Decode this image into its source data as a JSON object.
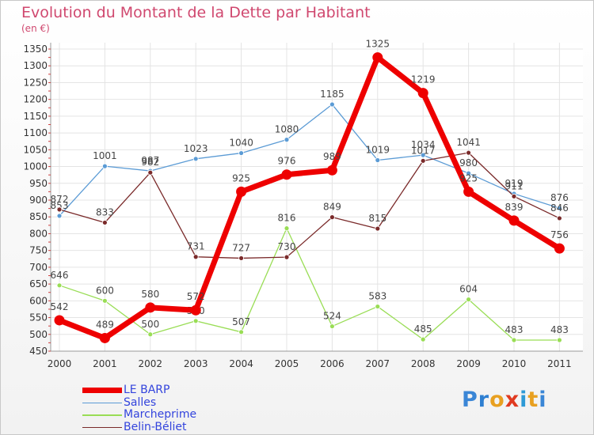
{
  "chart_data": {
    "type": "line",
    "title": "Evolution du Montant de la Dette par Habitant",
    "subtitle": "(en €)",
    "x": [
      "2000",
      "2001",
      "2002",
      "2003",
      "2004",
      "2005",
      "2006",
      "2007",
      "2008",
      "2009",
      "2010",
      "2011"
    ],
    "y_ticks": [
      450,
      500,
      550,
      600,
      650,
      700,
      750,
      800,
      850,
      900,
      950,
      1000,
      1050,
      1100,
      1150,
      1200,
      1250,
      1300,
      1350
    ],
    "ylim": [
      450,
      1350
    ],
    "grid": true,
    "legend_position": "bottom-left",
    "series": [
      {
        "name": "LE BARP",
        "color": "#ee0000",
        "width": 7,
        "values": [
          542,
          489,
          580,
          572,
          925,
          976,
          989,
          1325,
          1219,
          925,
          839,
          756
        ]
      },
      {
        "name": "Salles",
        "color": "#5b9bd5",
        "width": 1.3,
        "values": [
          853,
          1001,
          987,
          1023,
          1040,
          1080,
          1185,
          1019,
          1034,
          980,
          919,
          876
        ]
      },
      {
        "name": "Marcheprime",
        "color": "#99dd55",
        "width": 1.3,
        "values": [
          646,
          600,
          500,
          540,
          507,
          816,
          524,
          583,
          485,
          604,
          483,
          483
        ]
      },
      {
        "name": "Belin-Béliet",
        "color": "#7a2a2a",
        "width": 1.3,
        "values": [
          872,
          833,
          982,
          731,
          727,
          730,
          849,
          815,
          1017,
          1041,
          911,
          846
        ]
      }
    ]
  },
  "logo": {
    "text": "Proxiti",
    "letters": [
      "P",
      "r",
      "o",
      "x",
      "i",
      "t",
      "i"
    ],
    "colors": [
      "#3a86d6",
      "#2e7fd1",
      "#e8a020",
      "#e03a20",
      "#2e9ad6",
      "#e8a020",
      "#3a86d6"
    ]
  }
}
